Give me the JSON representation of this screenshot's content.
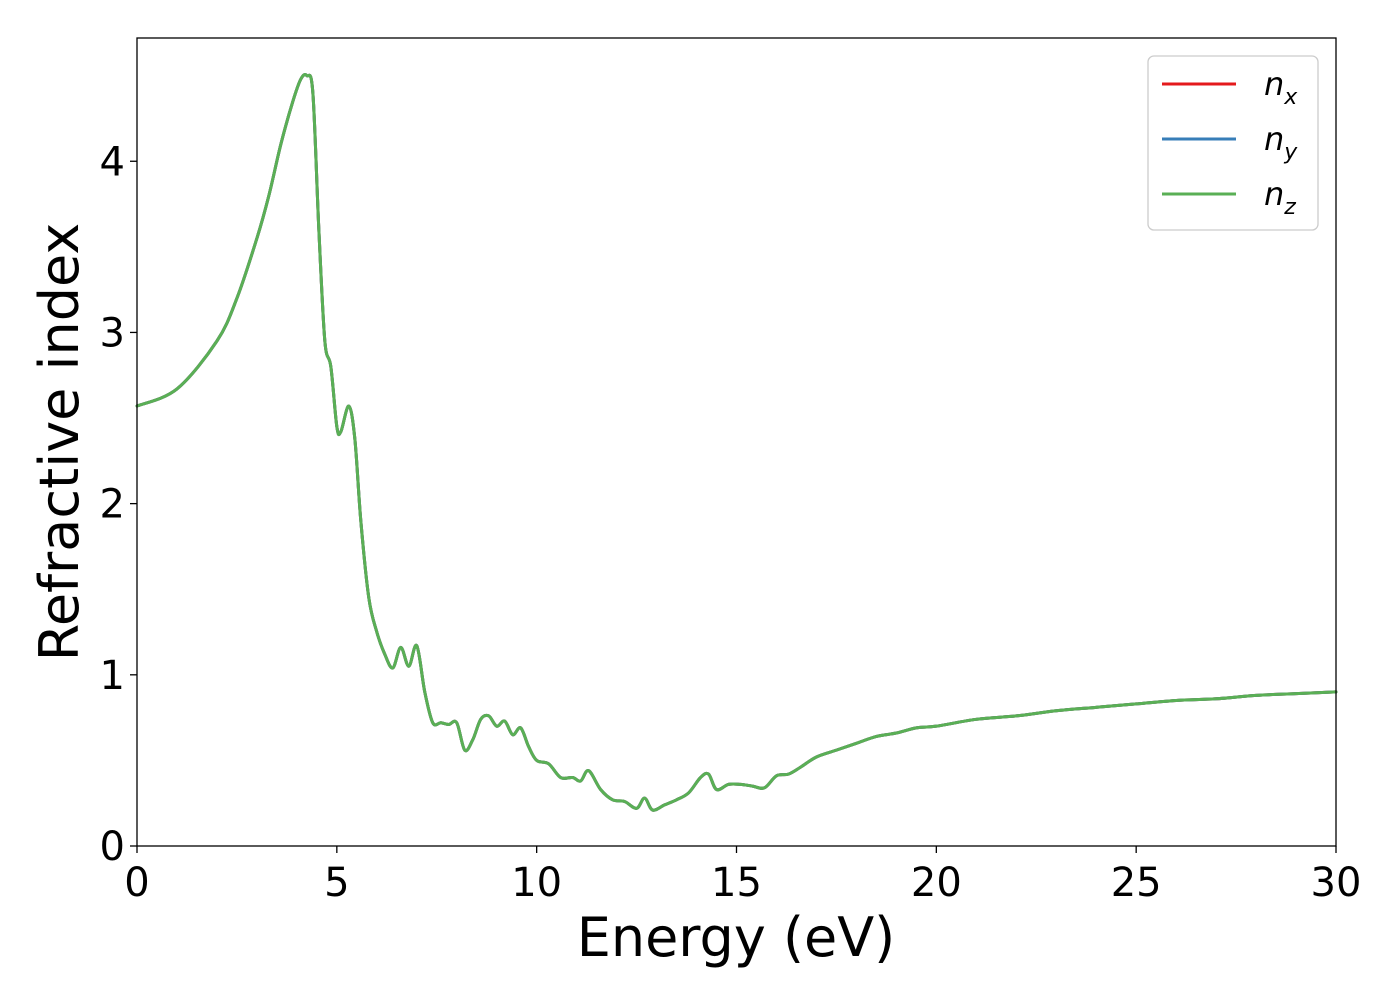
{
  "chart_data": {
    "type": "line",
    "title": "",
    "xlabel": "Energy (eV)",
    "ylabel": "Refractive index",
    "xlim": [
      0,
      30
    ],
    "ylim": [
      0,
      4.72
    ],
    "xticks": [
      0,
      5,
      10,
      15,
      20,
      25,
      30
    ],
    "yticks": [
      0,
      1,
      2,
      3,
      4
    ],
    "grid": false,
    "legend_position": "top-right",
    "series": [
      {
        "name": "n_x",
        "legend_base": "n",
        "legend_sub": "x",
        "color": "#e41a1c",
        "x": [
          0,
          1,
          2,
          2.5,
          3,
          3.3,
          3.6,
          3.9,
          4.1,
          4.25,
          4.4,
          4.55,
          4.7,
          4.85,
          5.0,
          5.1,
          5.3,
          5.45,
          5.6,
          5.8,
          6.0,
          6.2,
          6.4,
          6.6,
          6.8,
          7.0,
          7.2,
          7.4,
          7.6,
          7.8,
          8.0,
          8.2,
          8.4,
          8.6,
          8.8,
          9.0,
          9.2,
          9.4,
          9.6,
          9.8,
          10.0,
          10.3,
          10.6,
          10.9,
          11.1,
          11.3,
          11.6,
          11.9,
          12.2,
          12.5,
          12.7,
          12.9,
          13.2,
          13.5,
          13.8,
          14.1,
          14.3,
          14.5,
          14.8,
          15.1,
          15.4,
          15.7,
          16.0,
          16.3,
          16.6,
          17.0,
          17.5,
          18.0,
          18.5,
          19.0,
          19.5,
          20.0,
          21.0,
          22.0,
          23.0,
          24.0,
          25.0,
          26.0,
          27.0,
          28.0,
          29.0,
          30.0
        ],
        "y": [
          2.57,
          2.67,
          2.95,
          3.2,
          3.55,
          3.8,
          4.1,
          4.35,
          4.48,
          4.5,
          4.4,
          3.6,
          2.95,
          2.8,
          2.45,
          2.42,
          2.57,
          2.38,
          1.9,
          1.45,
          1.25,
          1.12,
          1.04,
          1.16,
          1.05,
          1.17,
          0.9,
          0.72,
          0.72,
          0.71,
          0.72,
          0.56,
          0.62,
          0.74,
          0.76,
          0.7,
          0.73,
          0.65,
          0.69,
          0.58,
          0.5,
          0.48,
          0.4,
          0.4,
          0.38,
          0.44,
          0.33,
          0.27,
          0.26,
          0.22,
          0.28,
          0.21,
          0.24,
          0.27,
          0.31,
          0.4,
          0.42,
          0.33,
          0.36,
          0.36,
          0.35,
          0.34,
          0.41,
          0.42,
          0.46,
          0.52,
          0.56,
          0.6,
          0.64,
          0.66,
          0.69,
          0.7,
          0.74,
          0.76,
          0.79,
          0.81,
          0.83,
          0.85,
          0.86,
          0.88,
          0.89,
          0.9
        ]
      },
      {
        "name": "n_y",
        "legend_base": "n",
        "legend_sub": "y",
        "color": "#377eb8",
        "x": [
          0,
          1,
          2,
          2.5,
          3,
          3.3,
          3.6,
          3.9,
          4.1,
          4.25,
          4.4,
          4.55,
          4.7,
          4.85,
          5.0,
          5.1,
          5.3,
          5.45,
          5.6,
          5.8,
          6.0,
          6.2,
          6.4,
          6.6,
          6.8,
          7.0,
          7.2,
          7.4,
          7.6,
          7.8,
          8.0,
          8.2,
          8.4,
          8.6,
          8.8,
          9.0,
          9.2,
          9.4,
          9.6,
          9.8,
          10.0,
          10.3,
          10.6,
          10.9,
          11.1,
          11.3,
          11.6,
          11.9,
          12.2,
          12.5,
          12.7,
          12.9,
          13.2,
          13.5,
          13.8,
          14.1,
          14.3,
          14.5,
          14.8,
          15.1,
          15.4,
          15.7,
          16.0,
          16.3,
          16.6,
          17.0,
          17.5,
          18.0,
          18.5,
          19.0,
          19.5,
          20.0,
          21.0,
          22.0,
          23.0,
          24.0,
          25.0,
          26.0,
          27.0,
          28.0,
          29.0,
          30.0
        ],
        "y": [
          2.57,
          2.67,
          2.95,
          3.2,
          3.55,
          3.8,
          4.1,
          4.35,
          4.48,
          4.5,
          4.4,
          3.6,
          2.95,
          2.8,
          2.45,
          2.42,
          2.57,
          2.38,
          1.9,
          1.45,
          1.25,
          1.12,
          1.04,
          1.16,
          1.05,
          1.17,
          0.9,
          0.72,
          0.72,
          0.71,
          0.72,
          0.56,
          0.62,
          0.74,
          0.76,
          0.7,
          0.73,
          0.65,
          0.69,
          0.58,
          0.5,
          0.48,
          0.4,
          0.4,
          0.38,
          0.44,
          0.33,
          0.27,
          0.26,
          0.22,
          0.28,
          0.21,
          0.24,
          0.27,
          0.31,
          0.4,
          0.42,
          0.33,
          0.36,
          0.36,
          0.35,
          0.34,
          0.41,
          0.42,
          0.46,
          0.52,
          0.56,
          0.6,
          0.64,
          0.66,
          0.69,
          0.7,
          0.74,
          0.76,
          0.79,
          0.81,
          0.83,
          0.85,
          0.86,
          0.88,
          0.89,
          0.9
        ]
      },
      {
        "name": "n_z",
        "legend_base": "n",
        "legend_sub": "z",
        "color": "#5aaf55",
        "x": [
          0,
          1,
          2,
          2.5,
          3,
          3.3,
          3.6,
          3.9,
          4.1,
          4.25,
          4.4,
          4.55,
          4.7,
          4.85,
          5.0,
          5.1,
          5.3,
          5.45,
          5.6,
          5.8,
          6.0,
          6.2,
          6.4,
          6.6,
          6.8,
          7.0,
          7.2,
          7.4,
          7.6,
          7.8,
          8.0,
          8.2,
          8.4,
          8.6,
          8.8,
          9.0,
          9.2,
          9.4,
          9.6,
          9.8,
          10.0,
          10.3,
          10.6,
          10.9,
          11.1,
          11.3,
          11.6,
          11.9,
          12.2,
          12.5,
          12.7,
          12.9,
          13.2,
          13.5,
          13.8,
          14.1,
          14.3,
          14.5,
          14.8,
          15.1,
          15.4,
          15.7,
          16.0,
          16.3,
          16.6,
          17.0,
          17.5,
          18.0,
          18.5,
          19.0,
          19.5,
          20.0,
          21.0,
          22.0,
          23.0,
          24.0,
          25.0,
          26.0,
          27.0,
          28.0,
          29.0,
          30.0
        ],
        "y": [
          2.57,
          2.67,
          2.95,
          3.2,
          3.55,
          3.8,
          4.1,
          4.35,
          4.48,
          4.5,
          4.4,
          3.6,
          2.95,
          2.8,
          2.45,
          2.42,
          2.57,
          2.38,
          1.9,
          1.45,
          1.25,
          1.12,
          1.04,
          1.16,
          1.05,
          1.17,
          0.9,
          0.72,
          0.72,
          0.71,
          0.72,
          0.56,
          0.62,
          0.74,
          0.76,
          0.7,
          0.73,
          0.65,
          0.69,
          0.58,
          0.5,
          0.48,
          0.4,
          0.4,
          0.38,
          0.44,
          0.33,
          0.27,
          0.26,
          0.22,
          0.28,
          0.21,
          0.24,
          0.27,
          0.31,
          0.4,
          0.42,
          0.33,
          0.36,
          0.36,
          0.35,
          0.34,
          0.41,
          0.42,
          0.46,
          0.52,
          0.56,
          0.6,
          0.64,
          0.66,
          0.69,
          0.7,
          0.74,
          0.76,
          0.79,
          0.81,
          0.83,
          0.85,
          0.86,
          0.88,
          0.89,
          0.9
        ]
      }
    ]
  }
}
